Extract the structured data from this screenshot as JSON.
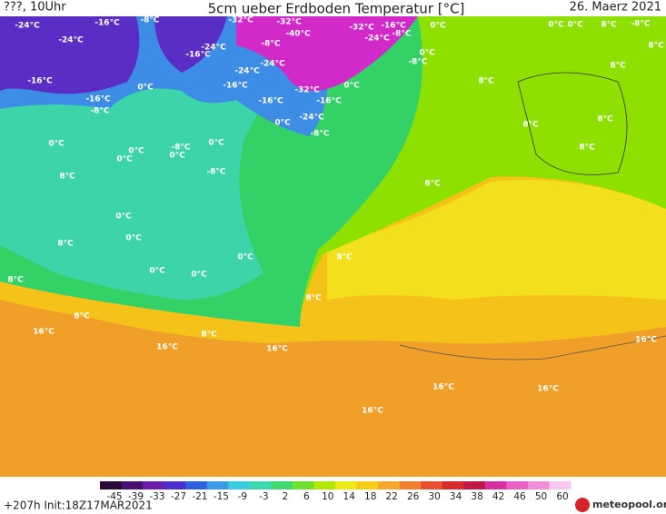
{
  "header": {
    "left": "???, 10Uhr",
    "title": "5cm ueber Erdboden Temperatur [°C]",
    "date": "26. Maerz 2021"
  },
  "map_labels": [
    "-24°C",
    "-16°C",
    "-8°C",
    "-24°C",
    "-32°C",
    "-32°C",
    "-40°C",
    "-32°C",
    "-16°C",
    "-24°C",
    "-8°C",
    "0°C",
    "0°C",
    "0°C",
    "8°C",
    "-8°C",
    "8°C",
    "8°C",
    "0°C",
    "-8°C",
    "-24°C",
    "-16°C",
    "-8°C",
    "-24°C",
    "-24°C",
    "-16°C",
    "0°C",
    "-16°C",
    "0°C",
    "8°C",
    "-16°C",
    "-8°C",
    "-16°C",
    "-32°C",
    "-16°C",
    "-24°C",
    "0°C",
    "-8°C",
    "8°C",
    "8°C",
    "0°C",
    "0°C",
    "-8°C",
    "0°C",
    "0°C",
    "0°C",
    "8°C",
    "-8°C",
    "8°C",
    "8°C",
    "0°C",
    "0°C",
    "8°C",
    "8°C",
    "0°C",
    "8°C",
    "0°C",
    "0°C",
    "8°C",
    "8°C",
    "16°C",
    "8°C",
    "16°C",
    "16°C",
    "16°C",
    "16°C",
    "16°C",
    "16°C"
  ],
  "colorbar": {
    "labels": [
      "-45",
      "-39",
      "-33",
      "-27",
      "-21",
      "-15",
      "-9",
      "-3",
      "2",
      "6",
      "10",
      "14",
      "18",
      "22",
      "26",
      "30",
      "34",
      "38",
      "42",
      "46",
      "50",
      "60"
    ]
  },
  "footer": {
    "run": "+207h Init:18Z17MAR2021",
    "brand": "meteopool.org"
  }
}
